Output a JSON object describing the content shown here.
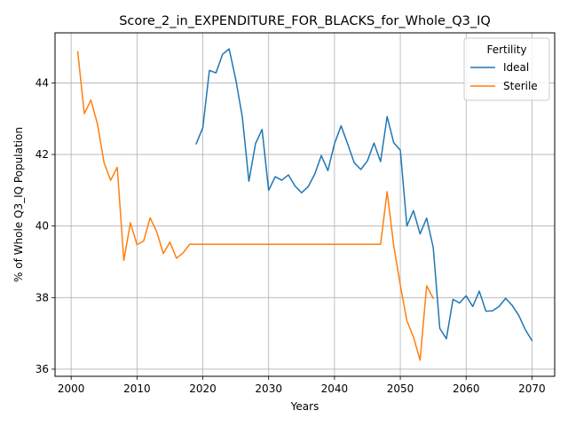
{
  "chart_data": {
    "type": "line",
    "title": "Score_2_in_EXPENDITURE_FOR_BLACKS_for_Whole_Q3_IQ",
    "xlabel": "Years",
    "ylabel": "% of Whole Q3_IQ Population",
    "xlim": [
      1997.55,
      2073.45
    ],
    "ylim": [
      35.8,
      45.4
    ],
    "xticks": [
      2000,
      2010,
      2020,
      2030,
      2040,
      2050,
      2060,
      2070
    ],
    "yticks": [
      36,
      38,
      40,
      42,
      44
    ],
    "grid": true,
    "legend": {
      "title": "Fertility",
      "position": "top-right"
    },
    "series": [
      {
        "name": "Ideal",
        "color": "#1f77b4",
        "x": [
          2019,
          2020,
          2021,
          2022,
          2023,
          2024,
          2025,
          2026,
          2027,
          2028,
          2029,
          2030,
          2031,
          2032,
          2033,
          2034,
          2035,
          2036,
          2037,
          2038,
          2039,
          2040,
          2041,
          2042,
          2043,
          2044,
          2045,
          2046,
          2047,
          2048,
          2049,
          2050,
          2051,
          2052,
          2053,
          2054,
          2055,
          2056,
          2057,
          2058,
          2059,
          2060,
          2061,
          2062,
          2063,
          2064,
          2065,
          2066,
          2067,
          2068,
          2069,
          2070
        ],
        "y": [
          42.3,
          42.75,
          44.35,
          44.28,
          44.8,
          44.95,
          44.1,
          43.05,
          41.25,
          42.3,
          42.7,
          41.0,
          41.38,
          41.28,
          41.43,
          41.12,
          40.93,
          41.1,
          41.45,
          41.97,
          41.55,
          42.3,
          42.8,
          42.3,
          41.77,
          41.58,
          41.82,
          42.32,
          41.8,
          43.06,
          42.33,
          42.12,
          40.0,
          40.43,
          39.78,
          40.22,
          39.4,
          37.14,
          36.85,
          37.95,
          37.85,
          38.05,
          37.75,
          38.18,
          37.62,
          37.63,
          37.75,
          37.98,
          37.78,
          37.5,
          37.1,
          36.8
        ]
      },
      {
        "name": "Sterile",
        "color": "#ff7f0e",
        "x": [
          2001,
          2002,
          2003,
          2004,
          2005,
          2006,
          2007,
          2008,
          2009,
          2010,
          2011,
          2012,
          2013,
          2014,
          2015,
          2016,
          2017,
          2018,
          2019,
          2020,
          2021,
          2022,
          2023,
          2024,
          2025,
          2026,
          2027,
          2028,
          2029,
          2030,
          2031,
          2032,
          2033,
          2034,
          2035,
          2036,
          2037,
          2038,
          2039,
          2040,
          2041,
          2042,
          2043,
          2044,
          2045,
          2046,
          2047,
          2048,
          2049,
          2050,
          2051,
          2052,
          2053,
          2054,
          2055
        ],
        "y": [
          44.87,
          43.14,
          43.52,
          42.85,
          41.77,
          41.28,
          41.64,
          39.04,
          40.09,
          39.48,
          39.58,
          40.23,
          39.84,
          39.23,
          39.55,
          39.1,
          39.25,
          39.49,
          39.49,
          39.49,
          39.49,
          39.49,
          39.49,
          39.49,
          39.49,
          39.49,
          39.49,
          39.49,
          39.49,
          39.49,
          39.49,
          39.49,
          39.49,
          39.49,
          39.49,
          39.49,
          39.49,
          39.49,
          39.49,
          39.49,
          39.49,
          39.49,
          39.49,
          39.49,
          39.49,
          39.49,
          39.49,
          40.96,
          39.45,
          38.35,
          37.35,
          36.9,
          36.25,
          38.33,
          37.98
        ]
      }
    ]
  }
}
